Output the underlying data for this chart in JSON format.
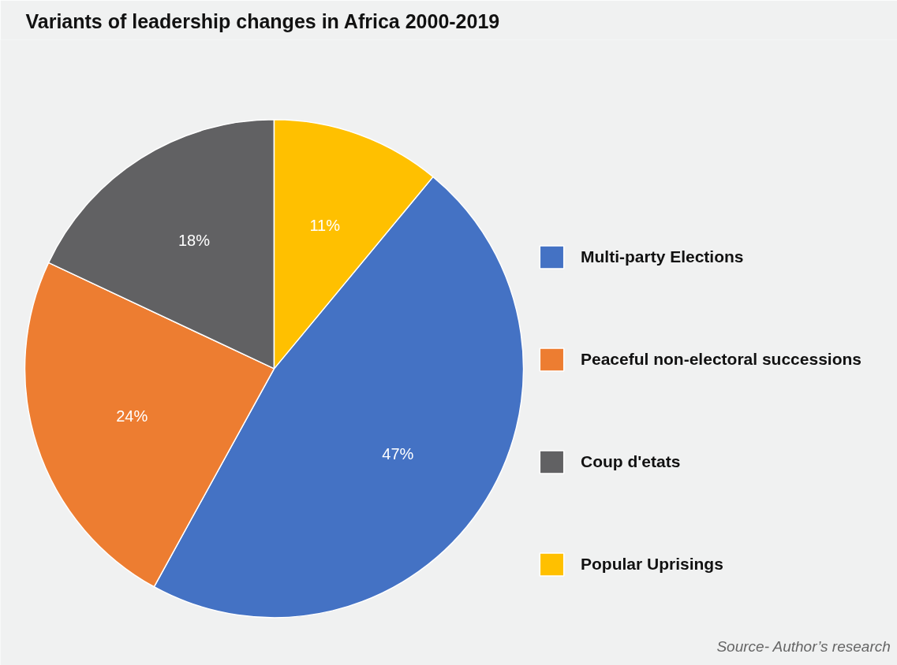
{
  "chart_data": {
    "type": "pie",
    "title": "Variants of leadership changes in Africa 2000-2019",
    "categories": [
      "Multi-party Elections",
      "Peaceful non-electoral successions",
      "Coup d'etats",
      "Popular Uprisings"
    ],
    "values": [
      47,
      24,
      18,
      11
    ],
    "colors": [
      "#4472c4",
      "#ed7d31",
      "#616163",
      "#ffc000"
    ],
    "value_labels": [
      "47%",
      "24%",
      "18%",
      "11%"
    ],
    "legend": "right",
    "annotations": [
      "Source- Author’s research"
    ]
  }
}
